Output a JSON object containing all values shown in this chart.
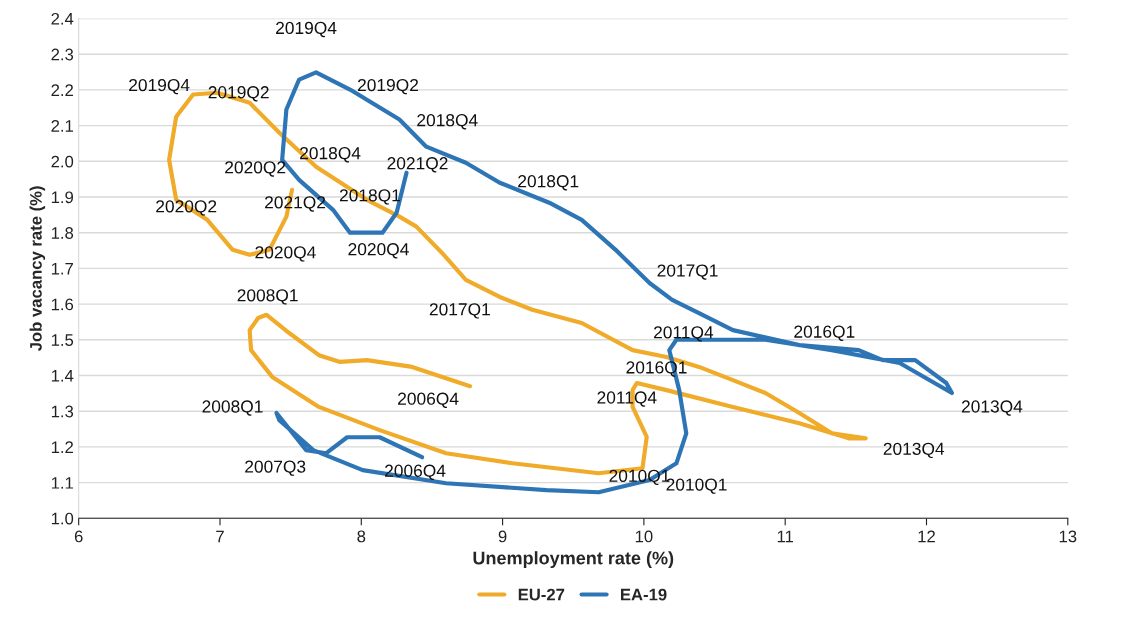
{
  "chart_data": {
    "type": "line",
    "xlabel": "Unemployment rate (%)",
    "ylabel": "Job vacancy rate (%)",
    "xlim": [
      6,
      13
    ],
    "xticks": [
      6,
      7,
      8,
      9,
      10,
      11,
      12,
      13
    ],
    "ylim": [
      1.0,
      2.4
    ],
    "yticks": [
      {
        "value": 1.0,
        "label": "1.0"
      },
      1.1,
      1.2,
      1.3,
      1.4,
      1.5,
      1.6,
      1.7,
      1.8,
      1.9,
      {
        "value": 2.0,
        "label": "2.0"
      },
      2.1,
      2.2,
      2.3,
      2.4
    ],
    "grid": "y",
    "legend": "bottom",
    "marker": "none",
    "line_style": "solid",
    "series": [
      {
        "name": "EU-27",
        "color": "#f0ab2a",
        "x": [
          8.77,
          8.36,
          8.04,
          7.85,
          7.7,
          7.49,
          7.33,
          7.27,
          7.21,
          7.22,
          7.37,
          7.7,
          8.13,
          8.6,
          9.07,
          9.68,
          9.99,
          10.02,
          9.92,
          9.92,
          9.95,
          10.16,
          10.63,
          11.1,
          11.45,
          11.57,
          11.33,
          11.1,
          10.86,
          10.63,
          10.39,
          10.16,
          9.92,
          9.56,
          9.21,
          8.98,
          8.74,
          8.57,
          8.39,
          8.27,
          8.04,
          7.68,
          7.42,
          7.21,
          6.98,
          6.81,
          6.69,
          6.64,
          6.69,
          6.91,
          7.09,
          7.21,
          7.35,
          7.47,
          7.51
        ],
        "values": [
          1.37,
          1.424,
          1.443,
          1.438,
          1.457,
          1.519,
          1.57,
          1.561,
          1.527,
          1.471,
          1.396,
          1.312,
          1.247,
          1.182,
          1.154,
          1.126,
          1.14,
          1.228,
          1.312,
          1.359,
          1.379,
          1.359,
          1.312,
          1.266,
          1.224,
          1.224,
          1.238,
          1.295,
          1.351,
          1.387,
          1.424,
          1.452,
          1.471,
          1.547,
          1.584,
          1.62,
          1.668,
          1.744,
          1.817,
          1.845,
          1.892,
          1.985,
          2.08,
          2.164,
          2.192,
          2.187,
          2.125,
          2.004,
          1.892,
          1.836,
          1.752,
          1.738,
          1.752,
          1.845,
          1.92
        ]
      },
      {
        "name": "EA-19",
        "color": "#2e75b6",
        "x": [
          8.43,
          8.13,
          7.9,
          7.75,
          7.61,
          7.4,
          7.42,
          7.66,
          8.01,
          8.6,
          9.31,
          9.68,
          10.04,
          10.23,
          10.3,
          10.25,
          10.18,
          10.23,
          10.51,
          10.86,
          11.33,
          11.81,
          12.18,
          12.14,
          11.92,
          11.81,
          11.69,
          11.52,
          11.1,
          10.63,
          10.39,
          10.2,
          10.04,
          9.8,
          9.56,
          9.33,
          8.98,
          8.74,
          8.46,
          8.27,
          7.92,
          7.68,
          7.56,
          7.47,
          7.44,
          7.56,
          7.8,
          7.92,
          8.15,
          8.25,
          8.32
        ],
        "values": [
          1.171,
          1.227,
          1.227,
          1.182,
          1.191,
          1.295,
          1.275,
          1.191,
          1.135,
          1.098,
          1.079,
          1.073,
          1.107,
          1.154,
          1.238,
          1.359,
          1.471,
          1.5,
          1.5,
          1.5,
          1.471,
          1.435,
          1.351,
          1.379,
          1.443,
          1.443,
          1.443,
          1.471,
          1.485,
          1.527,
          1.575,
          1.612,
          1.659,
          1.752,
          1.836,
          1.884,
          1.94,
          1.996,
          2.041,
          2.117,
          2.201,
          2.249,
          2.229,
          2.145,
          2.004,
          1.948,
          1.864,
          1.8,
          1.8,
          1.856,
          1.968
        ]
      }
    ],
    "annotations": [
      {
        "text": "2019Q4",
        "x": 6.81,
        "y": 2.187
      },
      {
        "text": "2019Q2",
        "x": 7.21,
        "y": 2.164
      },
      {
        "text": "2018Q4",
        "x": 7.68,
        "y": 1.985
      },
      {
        "text": "2020Q2",
        "x": 7.44,
        "y": 2.004
      },
      {
        "text": "2020Q2",
        "x": 6.69,
        "y": 1.892
      },
      {
        "text": "2021Q2",
        "x": 7.51,
        "y": 1.92
      },
      {
        "text": "2018Q1",
        "x": 8.04,
        "y": 1.892
      },
      {
        "text": "2020Q4",
        "x": 7.35,
        "y": 1.752
      },
      {
        "text": "2017Q1",
        "x": 8.74,
        "y": 1.668
      },
      {
        "text": "2008Q1",
        "x": 7.33,
        "y": 1.57
      },
      {
        "text": "2006Q4",
        "x": 8.77,
        "y": 1.37
      },
      {
        "text": "2011Q4",
        "x": 9.95,
        "y": 1.379
      },
      {
        "text": "2016Q1",
        "x": 10.16,
        "y": 1.452
      },
      {
        "text": "2010Q1",
        "x": 9.99,
        "y": 1.14
      },
      {
        "text": "2013Q4",
        "x": 11.57,
        "y": 1.224
      },
      {
        "text": "2019Q4",
        "x": 7.68,
        "y": 2.249
      },
      {
        "text": "2019Q2",
        "x": 7.92,
        "y": 2.201
      },
      {
        "text": "2018Q4",
        "x": 8.46,
        "y": 2.041
      },
      {
        "text": "2021Q2",
        "x": 8.32,
        "y": 1.968
      },
      {
        "text": "2018Q1",
        "x": 9.33,
        "y": 1.884
      },
      {
        "text": "2020Q4",
        "x": 8.15,
        "y": 1.8
      },
      {
        "text": "2017Q1",
        "x": 10.04,
        "y": 1.659
      },
      {
        "text": "2011Q4",
        "x": 10.23,
        "y": 1.5
      },
      {
        "text": "2016Q1",
        "x": 11.1,
        "y": 1.485
      },
      {
        "text": "2013Q4",
        "x": 12.18,
        "y": 1.351
      },
      {
        "text": "2008Q1",
        "x": 7.4,
        "y": 1.295
      },
      {
        "text": "2007Q3",
        "x": 7.61,
        "y": 1.191
      },
      {
        "text": "2006Q4",
        "x": 8.43,
        "y": 1.171
      },
      {
        "text": "2010Q1",
        "x": 10.04,
        "y": 1.107
      }
    ]
  }
}
